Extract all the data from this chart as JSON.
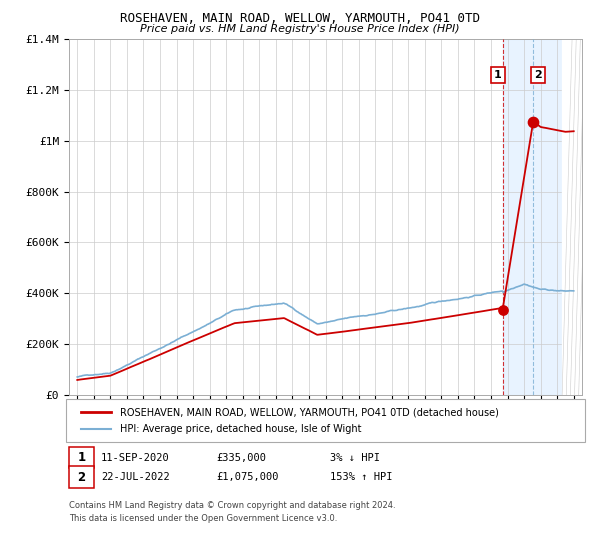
{
  "title": "ROSEHAVEN, MAIN ROAD, WELLOW, YARMOUTH, PO41 0TD",
  "subtitle": "Price paid vs. HM Land Registry's House Price Index (HPI)",
  "ylim": [
    0,
    1400000
  ],
  "yticks": [
    0,
    200000,
    400000,
    600000,
    800000,
    1000000,
    1200000,
    1400000
  ],
  "ytick_labels": [
    "£0",
    "£200K",
    "£400K",
    "£600K",
    "£800K",
    "£1M",
    "£1.2M",
    "£1.4M"
  ],
  "hpi_color": "#7bafd4",
  "price_color": "#cc0000",
  "dot_color": "#cc0000",
  "shade_color": "#ddeeff",
  "annotation1_date": "11-SEP-2020",
  "annotation1_price": "£335,000",
  "annotation1_pct": "3% ↓ HPI",
  "annotation2_date": "22-JUL-2022",
  "annotation2_price": "£1,075,000",
  "annotation2_pct": "153% ↑ HPI",
  "legend_line1": "ROSEHAVEN, MAIN ROAD, WELLOW, YARMOUTH, PO41 0TD (detached house)",
  "legend_line2": "HPI: Average price, detached house, Isle of Wight",
  "footer": "Contains HM Land Registry data © Crown copyright and database right 2024.\nThis data is licensed under the Open Government Licence v3.0.",
  "sale1_x": 2020.7,
  "sale1_y": 335000,
  "sale2_x": 2022.55,
  "sale2_y": 1075000,
  "shade_x1": 2020.7,
  "shade_x2": 2024.3,
  "xmin": 1994.5,
  "xmax": 2025.5
}
